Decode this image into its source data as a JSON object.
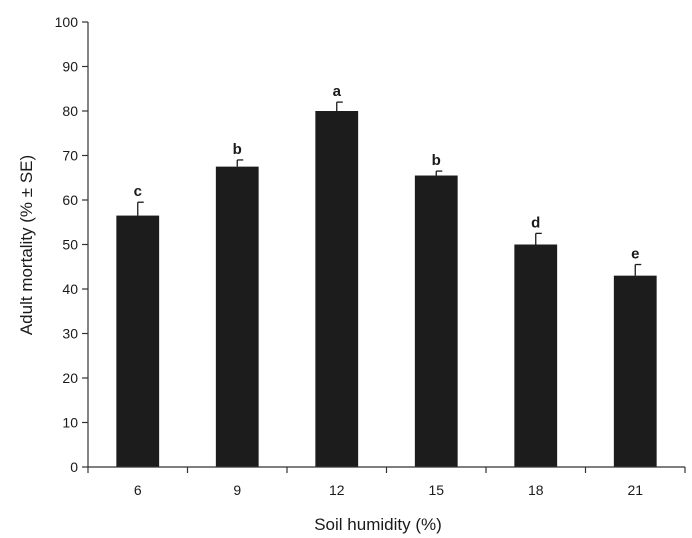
{
  "chart_data": {
    "type": "bar",
    "xlabel": "Soil humidity (%)",
    "ylabel": "Adult mortality (% ± SE)",
    "categories": [
      "6",
      "9",
      "12",
      "15",
      "18",
      "21"
    ],
    "values": [
      56.5,
      67.5,
      80,
      65.5,
      50,
      43
    ],
    "errors": [
      3,
      1.5,
      2,
      1,
      2.5,
      2.5
    ],
    "letters": [
      "c",
      "b",
      "a",
      "b",
      "d",
      "e"
    ],
    "ylim": [
      0,
      100
    ],
    "yticks": [
      "0",
      "10",
      "20",
      "30",
      "40",
      "50",
      "60",
      "70",
      "80",
      "90",
      "100"
    ],
    "grid": false,
    "bar_color": "#1c1c1c"
  }
}
